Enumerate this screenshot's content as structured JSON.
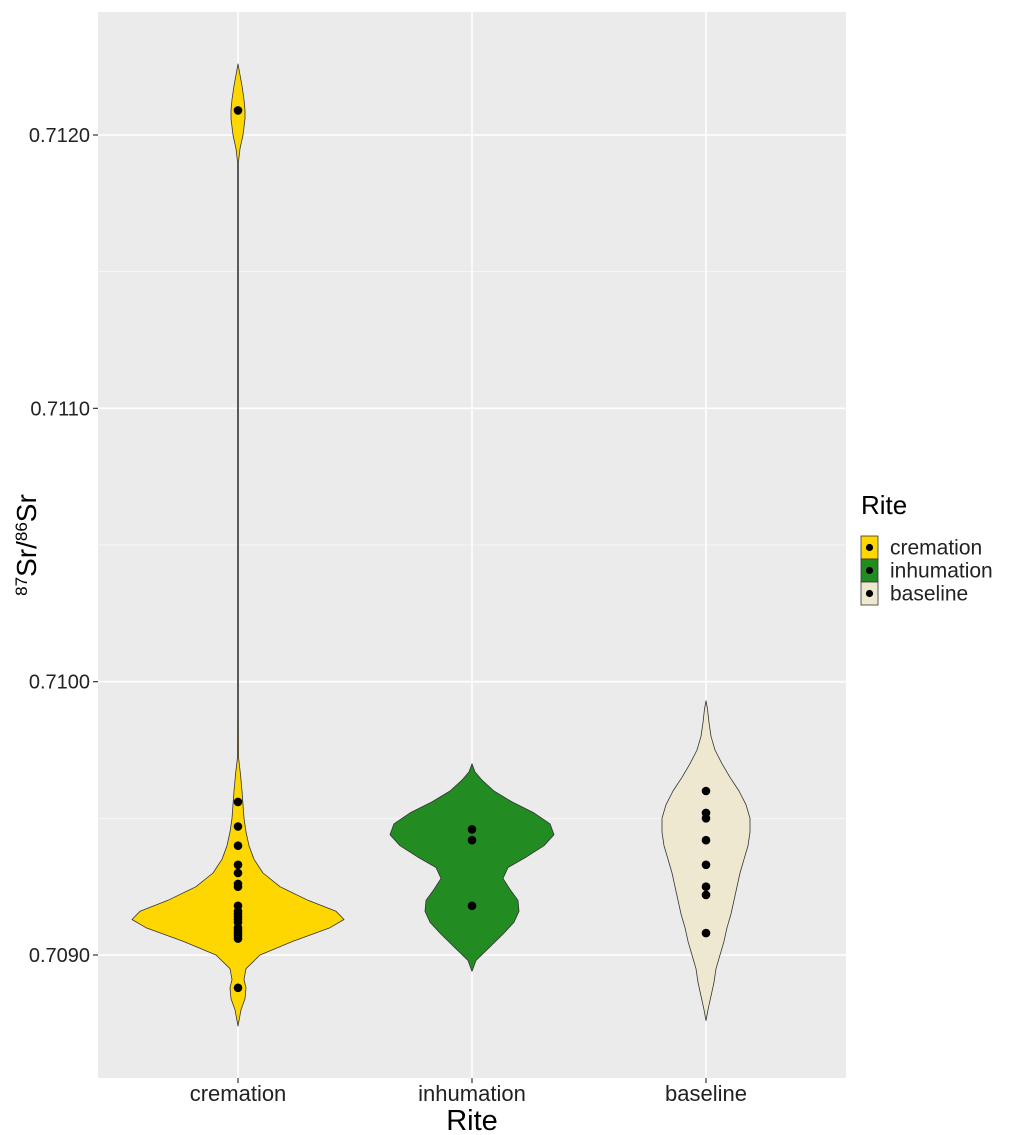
{
  "chart_data": {
    "type": "violin",
    "xlabel": "Rite",
    "ylabel": {
      "sup1": "87",
      "base1": "Sr/",
      "sup2": "86",
      "base2": "Sr"
    },
    "ylim": [
      0.70855,
      0.71245
    ],
    "y_ticks": [
      {
        "value": 0.709,
        "label": "0.7090"
      },
      {
        "value": 0.71,
        "label": "0.7100"
      },
      {
        "value": 0.711,
        "label": "0.7110"
      },
      {
        "value": 0.712,
        "label": "0.7120"
      }
    ],
    "y_minor_ticks": [
      0.7095,
      0.7105,
      0.7115
    ],
    "grid": true,
    "categories": [
      "cremation",
      "inhumation",
      "baseline"
    ],
    "legend": {
      "title": "Rite",
      "placement": "right",
      "entries": [
        "cremation",
        "inhumation",
        "baseline"
      ]
    },
    "colors": {
      "cremation": "#FFD700",
      "inhumation": "#228B22",
      "baseline": "#EEE8D0",
      "panel": "#EBEBEB",
      "grid": "#FFFFFF",
      "outline": "#333333",
      "point": "#000000"
    },
    "series": [
      {
        "name": "cremation",
        "points": [
          0.71209,
          0.70956,
          0.70947,
          0.7094,
          0.70933,
          0.7093,
          0.70926,
          0.70925,
          0.70918,
          0.70916,
          0.70915,
          0.70914,
          0.70913,
          0.70912,
          0.7091,
          0.70909,
          0.70908,
          0.70907,
          0.70906,
          0.70888
        ],
        "density": [
          [
            0.70874,
            0.0
          ],
          [
            0.7088,
            3.0
          ],
          [
            0.70884,
            7.0
          ],
          [
            0.70888,
            8.0
          ],
          [
            0.70891,
            6.0
          ],
          [
            0.70895,
            8.0
          ],
          [
            0.709,
            22.0
          ],
          [
            0.70905,
            55.0
          ],
          [
            0.7091,
            92.0
          ],
          [
            0.70913,
            106.0
          ],
          [
            0.70916,
            98.0
          ],
          [
            0.7092,
            70.0
          ],
          [
            0.70925,
            42.0
          ],
          [
            0.7093,
            25.0
          ],
          [
            0.70935,
            16.0
          ],
          [
            0.7094,
            11.0
          ],
          [
            0.70945,
            8.0
          ],
          [
            0.7095,
            6.0
          ],
          [
            0.70955,
            5.0
          ],
          [
            0.7096,
            4.0
          ],
          [
            0.70966,
            2.5
          ],
          [
            0.70972,
            0.6
          ],
          [
            0.7099,
            0.4
          ],
          [
            0.711,
            0.4
          ],
          [
            0.7119,
            0.4
          ],
          [
            0.71195,
            2.0
          ],
          [
            0.712,
            5.0
          ],
          [
            0.71206,
            7.0
          ],
          [
            0.71209,
            7.0
          ],
          [
            0.71213,
            6.0
          ],
          [
            0.71218,
            4.0
          ],
          [
            0.71222,
            2.0
          ],
          [
            0.71226,
            0.0
          ]
        ]
      },
      {
        "name": "inhumation",
        "points": [
          0.70946,
          0.70942,
          0.70918
        ],
        "density": [
          [
            0.70894,
            0.0
          ],
          [
            0.70898,
            4.0
          ],
          [
            0.70903,
            18.0
          ],
          [
            0.70908,
            32.0
          ],
          [
            0.70912,
            42.0
          ],
          [
            0.70916,
            47.0
          ],
          [
            0.7092,
            46.0
          ],
          [
            0.70924,
            38.0
          ],
          [
            0.70928,
            31.0
          ],
          [
            0.70932,
            36.0
          ],
          [
            0.70936,
            55.0
          ],
          [
            0.7094,
            72.0
          ],
          [
            0.70944,
            82.0
          ],
          [
            0.70948,
            78.0
          ],
          [
            0.70952,
            62.0
          ],
          [
            0.70956,
            40.0
          ],
          [
            0.7096,
            22.0
          ],
          [
            0.70964,
            10.0
          ],
          [
            0.70967,
            3.0
          ],
          [
            0.7097,
            0.0
          ]
        ]
      },
      {
        "name": "baseline",
        "points": [
          0.7096,
          0.70952,
          0.7095,
          0.70942,
          0.70933,
          0.70925,
          0.70922,
          0.70908
        ],
        "density": [
          [
            0.70876,
            0.0
          ],
          [
            0.7088,
            2.0
          ],
          [
            0.70885,
            5.0
          ],
          [
            0.7089,
            8.0
          ],
          [
            0.70895,
            10.0
          ],
          [
            0.709,
            14.0
          ],
          [
            0.70905,
            18.0
          ],
          [
            0.7091,
            21.0
          ],
          [
            0.70915,
            25.0
          ],
          [
            0.7092,
            28.0
          ],
          [
            0.70925,
            31.0
          ],
          [
            0.7093,
            34.0
          ],
          [
            0.70935,
            38.0
          ],
          [
            0.7094,
            42.0
          ],
          [
            0.70945,
            44.0
          ],
          [
            0.7095,
            44.0
          ],
          [
            0.70955,
            40.0
          ],
          [
            0.7096,
            33.0
          ],
          [
            0.70965,
            24.0
          ],
          [
            0.7097,
            16.0
          ],
          [
            0.70975,
            9.0
          ],
          [
            0.7098,
            5.0
          ],
          [
            0.70985,
            3.0
          ],
          [
            0.7099,
            1.5
          ],
          [
            0.70993,
            0.0
          ]
        ]
      }
    ]
  }
}
